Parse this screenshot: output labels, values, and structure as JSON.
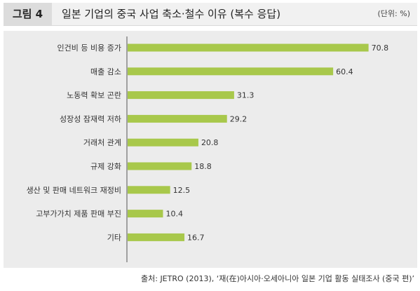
{
  "figure_label": "그림 4",
  "unit": "(단위: %)",
  "source": "출처: JETRO (2013), ‘재(在)아시아·오세아니아 일본 기업 활동 실태조사 (중국 편)’",
  "colors": {
    "bar": "#a8c84b",
    "panel": "#ececec"
  },
  "chart_data": {
    "type": "bar",
    "orientation": "horizontal",
    "title": "일본 기업의 중국 사업 축소·철수 이유 (복수 응답)",
    "categories": [
      "인건비 등 비용 증가",
      "매출 감소",
      "노동력 확보 곤란",
      "성장성 잠재력 저하",
      "거래처 관계",
      "규제 강화",
      "생산 및 판매 네트워크 재정비",
      "고부가가치 제품 판매 부진",
      "기타"
    ],
    "values": [
      70.8,
      60.4,
      31.3,
      29.2,
      20.8,
      18.8,
      12.5,
      10.4,
      16.7
    ],
    "xlim": [
      0,
      75
    ],
    "grid": false,
    "legend": "none"
  }
}
